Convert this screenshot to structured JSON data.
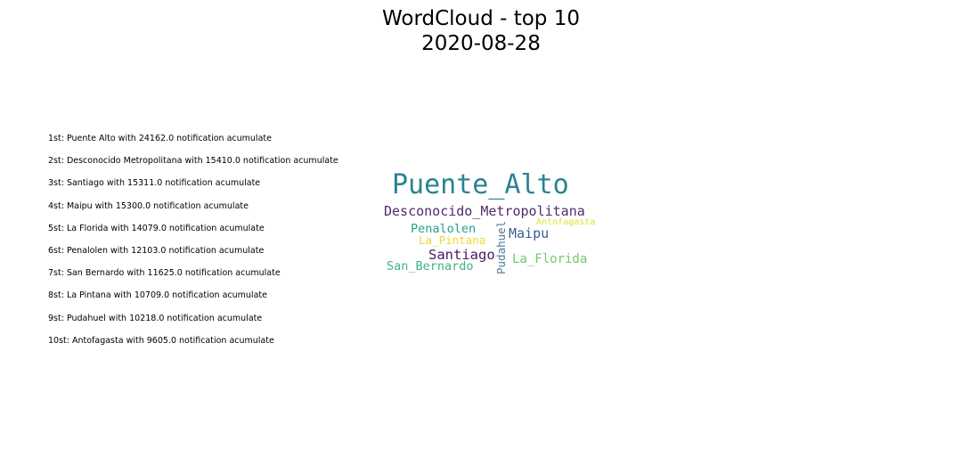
{
  "title": {
    "line1": "WordCloud - top 10",
    "line2": "2020-08-28"
  },
  "ranking": [
    "1st: Puente Alto with 24162.0 notification acumulate",
    "2st: Desconocido Metropolitana with 15410.0 notification acumulate",
    "3st: Santiago with 15311.0 notification acumulate",
    "4st: Maipu with 15300.0 notification acumulate",
    "5st: La Florida with 14079.0 notification acumulate",
    "6st: Penalolen with 12103.0 notification acumulate",
    "7st: San Bernardo with 11625.0 notification acumulate",
    "8st: La Pintana with 10709.0 notification acumulate",
    "9st: Pudahuel with 10218.0 notification acumulate",
    "10st: Antofagasta with 9605.0 notification acumulate"
  ],
  "chart_data": {
    "type": "wordcloud",
    "title": "WordCloud - top 10\n2020-08-28",
    "words": [
      {
        "text": "Puente_Alto",
        "value": 24162.0,
        "color": "#2a8390",
        "orientation": "horizontal"
      },
      {
        "text": "Desconocido_Metropolitana",
        "value": 15410.0,
        "color": "#54296e",
        "orientation": "horizontal"
      },
      {
        "text": "Santiago",
        "value": 15311.0,
        "color": "#471a62",
        "orientation": "horizontal"
      },
      {
        "text": "Maipu",
        "value": 15300.0,
        "color": "#3a5f8e",
        "orientation": "horizontal"
      },
      {
        "text": "La_Florida",
        "value": 14079.0,
        "color": "#6ccc6a",
        "orientation": "horizontal"
      },
      {
        "text": "Penalolen",
        "value": 12103.0,
        "color": "#29a08a",
        "orientation": "horizontal"
      },
      {
        "text": "San_Bernardo",
        "value": 11625.0,
        "color": "#3cb482",
        "orientation": "horizontal"
      },
      {
        "text": "La_Pintana",
        "value": 10709.0,
        "color": "#ecd932",
        "orientation": "horizontal"
      },
      {
        "text": "Pudahuel",
        "value": 10218.0,
        "color": "#4e7896",
        "orientation": "vertical"
      },
      {
        "text": "Antofagasta",
        "value": 9605.0,
        "color": "#dfe234",
        "orientation": "horizontal"
      }
    ]
  }
}
